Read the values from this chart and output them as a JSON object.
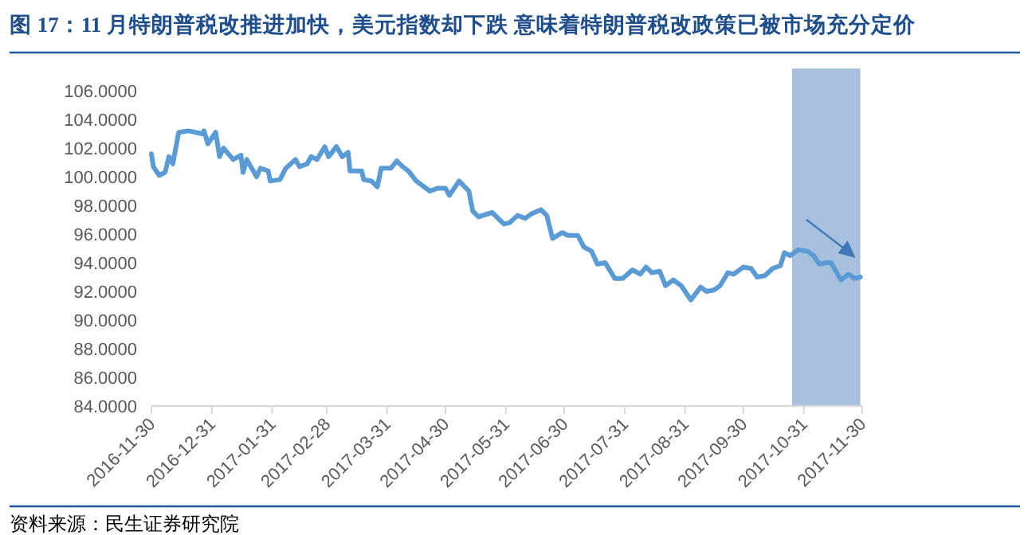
{
  "chart_data": {
    "type": "line",
    "title": "图 17：11 月特朗普税改推进加快，美元指数却下跌 意味着特朗普税改政策已被市场充分定价",
    "annotations": [
      "资料来源：民生证券研究院"
    ],
    "x": [
      "2016-11-30",
      "2016-12-01",
      "2016-12-04",
      "2016-12-07",
      "2016-12-09",
      "2016-12-11",
      "2016-12-14",
      "2016-12-19",
      "2016-12-26",
      "2016-12-27",
      "2016-12-29",
      "2017-01-02",
      "2017-01-04",
      "2017-01-06",
      "2017-01-11",
      "2017-01-15",
      "2017-01-16",
      "2017-01-18",
      "2017-01-23",
      "2017-01-25",
      "2017-01-29",
      "2017-01-30",
      "2017-02-04",
      "2017-02-07",
      "2017-02-12",
      "2017-02-14",
      "2017-02-18",
      "2017-02-20",
      "2017-02-23",
      "2017-02-27",
      "2017-03-01",
      "2017-03-05",
      "2017-03-08",
      "2017-03-11",
      "2017-03-12",
      "2017-03-18",
      "2017-03-19",
      "2017-03-23",
      "2017-03-26",
      "2017-03-28",
      "2017-04-02",
      "2017-04-05",
      "2017-04-08",
      "2017-04-11",
      "2017-04-15",
      "2017-04-22",
      "2017-04-26",
      "2017-04-30",
      "2017-05-02",
      "2017-05-07",
      "2017-05-12",
      "2017-05-14",
      "2017-05-17",
      "2017-05-19",
      "2017-05-24",
      "2017-05-30",
      "2017-06-02",
      "2017-06-06",
      "2017-06-10",
      "2017-06-13",
      "2017-06-18",
      "2017-06-21",
      "2017-06-24",
      "2017-06-29",
      "2017-07-02",
      "2017-07-07",
      "2017-07-10",
      "2017-07-14",
      "2017-07-17",
      "2017-07-21",
      "2017-07-26",
      "2017-07-30",
      "2017-08-04",
      "2017-08-08",
      "2017-08-11",
      "2017-08-14",
      "2017-08-18",
      "2017-08-21",
      "2017-08-25",
      "2017-08-29",
      "2017-09-03",
      "2017-09-08",
      "2017-09-11",
      "2017-09-15",
      "2017-09-18",
      "2017-09-22",
      "2017-09-25",
      "2017-09-30",
      "2017-10-04",
      "2017-10-07",
      "2017-10-11",
      "2017-10-15",
      "2017-10-19",
      "2017-10-21",
      "2017-10-24",
      "2017-10-28",
      "2017-11-02",
      "2017-11-05",
      "2017-11-08",
      "2017-11-11",
      "2017-11-14",
      "2017-11-19",
      "2017-11-23",
      "2017-11-26",
      "2017-11-29"
    ],
    "series": [
      {
        "color": "#5b9bd5",
        "values": [
          101.6,
          100.7,
          100.1,
          100.3,
          101.4,
          100.9,
          103.1,
          103.2,
          103.0,
          103.2,
          102.3,
          103.1,
          101.4,
          102.0,
          101.2,
          101.5,
          100.3,
          101.2,
          100.0,
          100.6,
          100.4,
          99.7,
          99.8,
          100.6,
          101.2,
          100.7,
          100.9,
          101.4,
          101.2,
          102.1,
          101.4,
          102.1,
          101.4,
          101.7,
          100.4,
          100.4,
          99.8,
          99.7,
          99.3,
          100.6,
          100.6,
          101.1,
          100.7,
          100.4,
          99.7,
          99.0,
          99.2,
          99.2,
          98.7,
          99.7,
          99.0,
          97.6,
          97.2,
          97.3,
          97.5,
          96.7,
          96.8,
          97.3,
          97.1,
          97.4,
          97.7,
          97.3,
          95.7,
          96.1,
          95.9,
          95.9,
          95.1,
          94.8,
          93.9,
          94.0,
          92.9,
          92.9,
          93.5,
          93.2,
          93.7,
          93.3,
          93.4,
          92.4,
          92.8,
          92.4,
          91.4,
          92.3,
          92.0,
          92.1,
          92.4,
          93.3,
          93.2,
          93.7,
          93.6,
          93.0,
          93.1,
          93.6,
          93.8,
          94.7,
          94.5,
          94.9,
          94.8,
          94.5,
          93.9,
          94.0,
          94.0,
          92.8,
          93.2,
          92.9,
          93.0
        ]
      }
    ],
    "xlim": [
      "2016-11-30",
      "2017-11-30"
    ],
    "xticks": [
      "2016-11-30",
      "2016-12-31",
      "2017-01-31",
      "2017-02-28",
      "2017-03-31",
      "2017-04-30",
      "2017-05-31",
      "2017-06-30",
      "2017-07-31",
      "2017-08-31",
      "2017-09-30",
      "2017-10-31",
      "2017-11-30"
    ],
    "ylim": [
      84,
      106
    ],
    "yticks": [
      {
        "value": 84,
        "label": "84.0000"
      },
      {
        "value": 86,
        "label": "86.0000"
      },
      {
        "value": 88,
        "label": "88.0000"
      },
      {
        "value": 90,
        "label": "90.0000"
      },
      {
        "value": 92,
        "label": "92.0000"
      },
      {
        "value": 94,
        "label": "94.0000"
      },
      {
        "value": 96,
        "label": "96.0000"
      },
      {
        "value": 98,
        "label": "98.0000"
      },
      {
        "value": 100,
        "label": "100.0000"
      },
      {
        "value": 102,
        "label": "102.0000"
      },
      {
        "value": 104,
        "label": "104.0000"
      },
      {
        "value": 106,
        "label": "106.0000"
      }
    ],
    "bands": [
      {
        "axis": "x",
        "from": "2017-10-25",
        "to": "2017-11-29",
        "color": "#a7c0de"
      }
    ],
    "grid": false,
    "marker": "none",
    "line_style": "solid"
  }
}
